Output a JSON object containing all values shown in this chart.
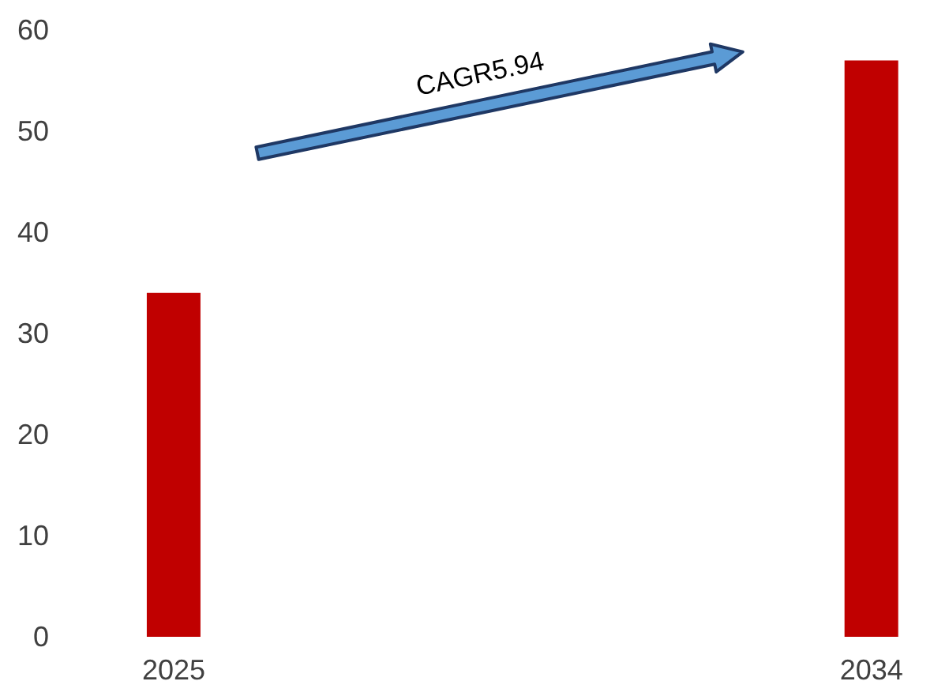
{
  "chart_data": {
    "type": "bar",
    "categories": [
      "2025",
      "2034"
    ],
    "values": [
      34,
      57
    ],
    "color": "#c00000",
    "ylim": [
      0,
      60
    ],
    "yticks": [
      0,
      10,
      20,
      30,
      40,
      50,
      60
    ],
    "grid": false,
    "annotations": [
      "CAGR5.94"
    ]
  }
}
